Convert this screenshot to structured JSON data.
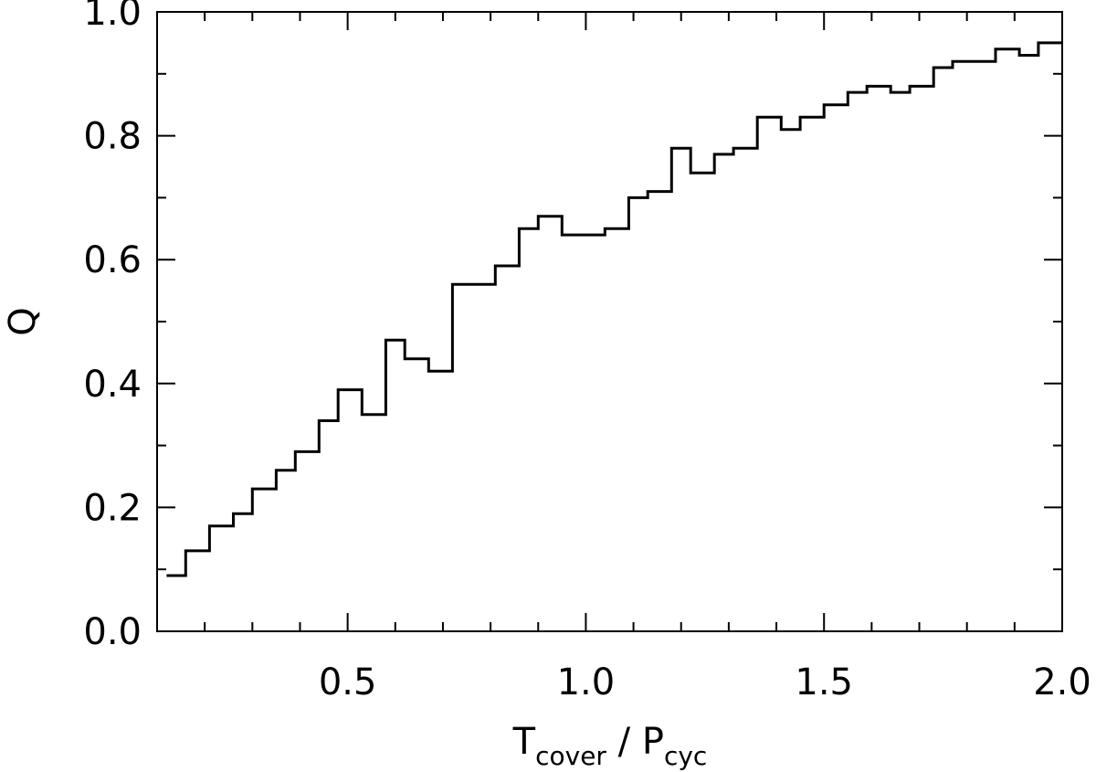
{
  "chart_data": {
    "type": "line",
    "style": "step-histogram",
    "title": "",
    "xlabel": {
      "main1": "T",
      "sub1": "cover",
      "sep": " / ",
      "main2": "P",
      "sub2": "cyc"
    },
    "ylabel": "Q",
    "xlim": [
      0.1,
      2.0
    ],
    "ylim": [
      0.0,
      1.0
    ],
    "xticks": [
      0.5,
      1.0,
      1.5,
      2.0
    ],
    "xtick_labels": [
      "0.5",
      "1.0",
      "1.5",
      "2.0"
    ],
    "xminor_step": 0.1,
    "yticks": [
      0.0,
      0.2,
      0.4,
      0.6,
      0.8,
      1.0
    ],
    "ytick_labels": [
      "0.0",
      "0.2",
      "0.4",
      "0.6",
      "0.8",
      "1.0"
    ],
    "yminor_step": 0.1,
    "grid": false,
    "line_color": "#000000",
    "bin_edges": [
      0.12,
      0.16,
      0.21,
      0.26,
      0.3,
      0.35,
      0.39,
      0.44,
      0.48,
      0.53,
      0.58,
      0.62,
      0.67,
      0.72,
      0.77,
      0.81,
      0.86,
      0.9,
      0.95,
      1.0,
      1.04,
      1.09,
      1.13,
      1.18,
      1.22,
      1.27,
      1.31,
      1.36,
      1.41,
      1.45,
      1.5,
      1.55,
      1.59,
      1.64,
      1.68,
      1.73,
      1.77,
      1.82,
      1.86,
      1.91,
      1.95,
      2.0
    ],
    "values": [
      0.09,
      0.13,
      0.17,
      0.19,
      0.23,
      0.26,
      0.29,
      0.34,
      0.39,
      0.35,
      0.47,
      0.44,
      0.42,
      0.56,
      0.56,
      0.59,
      0.65,
      0.67,
      0.64,
      0.64,
      0.65,
      0.7,
      0.71,
      0.78,
      0.74,
      0.77,
      0.78,
      0.83,
      0.81,
      0.83,
      0.85,
      0.87,
      0.88,
      0.87,
      0.88,
      0.91,
      0.92,
      0.92,
      0.94,
      0.93,
      0.95,
      0.95
    ]
  }
}
